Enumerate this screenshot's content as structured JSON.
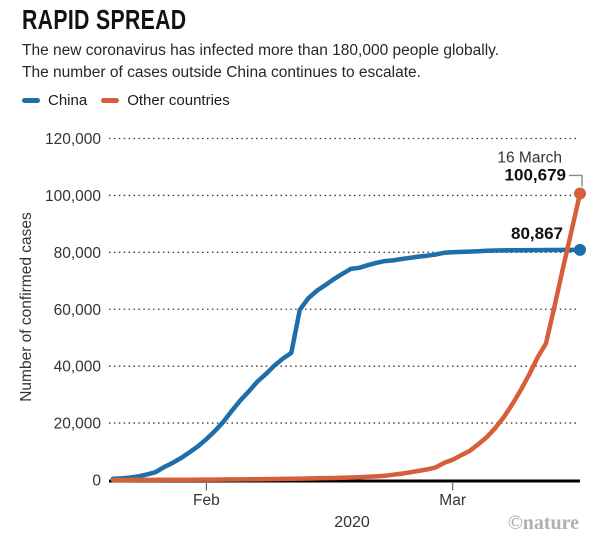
{
  "header": {
    "title": "RAPID SPREAD",
    "subtitle_line1": "The new coronavirus has infected more than 180,000 people globally.",
    "subtitle_line2": "The number of cases outside China continues to escalate."
  },
  "legend": {
    "items": [
      {
        "label": "China",
        "color": "#1E6FA9"
      },
      {
        "label": "Other countries",
        "color": "#D55F3B"
      }
    ]
  },
  "footer": {
    "credit": "©nature"
  },
  "chart_data": {
    "type": "line",
    "title": "RAPID SPREAD",
    "xlabel": "2020",
    "ylabel": "Number of confirmed cases",
    "ylim": [
      0,
      120000
    ],
    "grid": "horizontal-dotted",
    "legend_position": "top-left",
    "x_unit": "day",
    "x_start_date": "21 January 2020",
    "x_end_date": "16 March 2020",
    "yticks": [
      {
        "value": 0,
        "label": "0"
      },
      {
        "value": 20000,
        "label": "20,000"
      },
      {
        "value": 40000,
        "label": "40,000"
      },
      {
        "value": 60000,
        "label": "60,000"
      },
      {
        "value": 80000,
        "label": "80,000"
      },
      {
        "value": 100000,
        "label": "100,000"
      },
      {
        "value": 120000,
        "label": "120,000"
      }
    ],
    "xticks": [
      {
        "label": "Feb",
        "day_index": 11
      },
      {
        "label": "Mar",
        "day_index": 40
      }
    ],
    "annotations": [
      {
        "text": "16 March",
        "type": "date",
        "series": "Other countries"
      },
      {
        "text": "100,679",
        "type": "end-value",
        "series": "Other countries"
      },
      {
        "text": "80,867",
        "type": "end-value",
        "series": "China"
      }
    ],
    "series": [
      {
        "name": "China",
        "color": "#1E6FA9",
        "end_label": "80,867",
        "values": [
          440,
          571,
          830,
          1287,
          1975,
          2744,
          4515,
          5974,
          7711,
          9692,
          11791,
          14380,
          17205,
          20438,
          24324,
          28018,
          31161,
          34546,
          37198,
          40171,
          42638,
          44653,
          59804,
          63851,
          66492,
          68500,
          70548,
          72436,
          74185,
          74579,
          75465,
          76288,
          76936,
          77150,
          77658,
          78064,
          78497,
          78824,
          79251,
          79824,
          80026,
          80151,
          80270,
          80409,
          80552,
          80651,
          80695,
          80735,
          80754,
          80778,
          80793,
          80813,
          80824,
          80844,
          80860,
          80867
        ]
      },
      {
        "name": "Other countries",
        "color": "#D55F3B",
        "end_label": "100,679",
        "end_date_label": "16 March",
        "values": [
          7,
          8,
          12,
          21,
          32,
          45,
          60,
          70,
          84,
          103,
          125,
          140,
          156,
          172,
          195,
          225,
          255,
          290,
          319,
          356,
          397,
          442,
          490,
          542,
          593,
          655,
          710,
          780,
          896,
          999,
          1120,
          1260,
          1480,
          1845,
          2255,
          2710,
          3215,
          3735,
          4430,
          6010,
          7100,
          8700,
          10200,
          12500,
          15000,
          18200,
          22000,
          26500,
          31500,
          37000,
          43000,
          48000,
          61000,
          74500,
          87500,
          100679
        ]
      }
    ]
  }
}
